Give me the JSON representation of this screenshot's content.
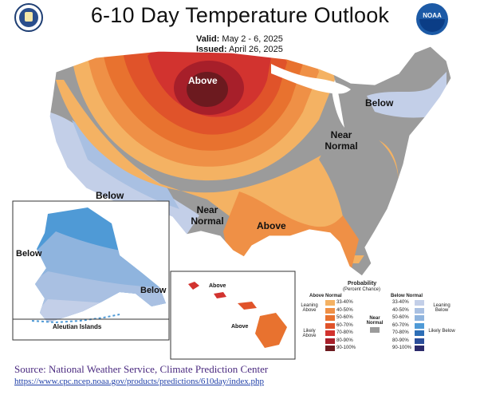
{
  "header": {
    "title": "6-10 Day Temperature Outlook",
    "valid_label": "Valid:",
    "valid_value": "May 2 - 6, 2025",
    "issued_label": "Issued:",
    "issued_value": "April 26, 2025"
  },
  "logos": {
    "left": "seal-icon",
    "right": "noaa-logo",
    "right_text": "NOAA"
  },
  "map_labels": {
    "above_north": "Above",
    "below_northeast": "Below",
    "near_normal_east": "Near Normal",
    "below_southwest": "Below",
    "near_normal_south": "Near Normal",
    "above_south": "Above",
    "alaska_below_west": "Below",
    "alaska_below_southeast": "Below",
    "aleutian_islands": "Aleutian Islands",
    "hawaii_above_1": "Above",
    "hawaii_above_2": "Above"
  },
  "legend": {
    "title": "Probability",
    "subtitle": "(Percent Chance)",
    "above_header": "Above Normal",
    "below_header": "Below Normal",
    "near_label": "Near Normal",
    "leaning_above": "Leaning Above",
    "likely_above": "Likely Above",
    "leaning_below": "Leaning Below",
    "likely_below": "Likely Below",
    "above_bins": [
      "33-40%",
      "40-50%",
      "50-60%",
      "60-70%",
      "70-80%",
      "80-90%",
      "90-100%"
    ],
    "below_bins": [
      "33-40%",
      "40-50%",
      "50-60%",
      "60-70%",
      "70-80%",
      "80-90%",
      "90-100%"
    ],
    "above_colors": [
      "#f4b263",
      "#ef9046",
      "#e8722f",
      "#e0532a",
      "#d2332f",
      "#a71f2a",
      "#6c1a1f"
    ],
    "below_colors": [
      "#c3cfe8",
      "#a9c0e2",
      "#8fb4de",
      "#4f9ad6",
      "#2e6fb7",
      "#2b4e9a",
      "#2b2a6b"
    ],
    "near_color": "#9b9b9b"
  },
  "footer": {
    "source": "Source: National Weather Service, Climate Prediction Center",
    "url": "https://www.cpc.ncep.noaa.gov/products/predictions/610day/index.php"
  }
}
